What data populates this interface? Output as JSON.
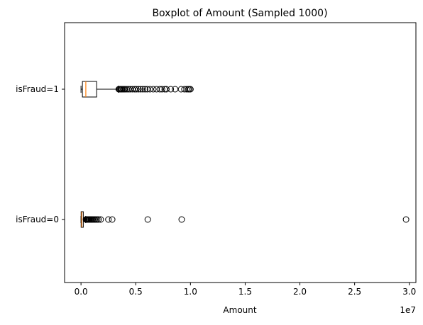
{
  "chart_data": {
    "type": "boxplot",
    "orientation": "horizontal",
    "title": "Boxplot of Amount (Sampled 1000)",
    "xlabel": "Amount",
    "ylabel": "",
    "x_scale_label": "1e7",
    "x_scale_factor": 10000000,
    "xlim": [
      -1500000,
      30600000
    ],
    "x_ticks": [
      0,
      5000000,
      10000000,
      15000000,
      20000000,
      25000000,
      30000000
    ],
    "x_tick_labels": [
      "0.0",
      "0.5",
      "1.0",
      "1.5",
      "2.0",
      "2.5",
      "3.0"
    ],
    "grid": false,
    "series": [
      {
        "label": "isFraud=0",
        "whisker_low": 0,
        "q1": 10000,
        "median": 70000,
        "q3": 210000,
        "whisker_high": 430000,
        "outliers": [
          450000,
          480000,
          520000,
          560000,
          600000,
          650000,
          700000,
          760000,
          820000,
          900000,
          980000,
          1050000,
          1150000,
          1250000,
          1350000,
          1480000,
          1600000,
          1800000,
          2500000,
          2850000,
          6100000,
          9200000,
          29700000
        ]
      },
      {
        "label": "isFraud=1",
        "whisker_low": 0,
        "q1": 130000,
        "median": 440000,
        "q3": 1430000,
        "whisker_high": 3400000,
        "outliers": [
          3450000,
          3520000,
          3600000,
          3680000,
          3750000,
          3850000,
          3950000,
          4050000,
          4200000,
          4350000,
          4500000,
          4700000,
          4900000,
          5050000,
          5250000,
          5450000,
          5650000,
          5850000,
          6050000,
          6300000,
          6600000,
          6900000,
          7200000,
          7400000,
          7650000,
          7800000,
          8200000,
          8600000,
          9150000,
          9450000,
          9650000,
          9800000,
          9900000,
          10000000
        ]
      }
    ]
  }
}
